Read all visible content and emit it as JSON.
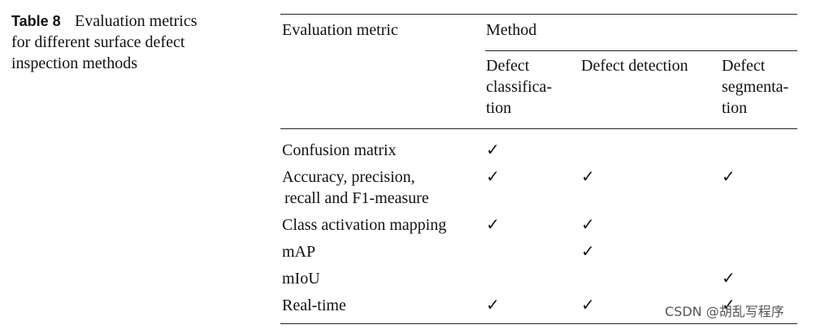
{
  "caption": {
    "label": "Table 8",
    "lines": [
      "Evaluation metrics",
      "for different surface defect",
      "inspection methods"
    ]
  },
  "table": {
    "header": {
      "metric": "Evaluation metric",
      "method": "Method",
      "methods": [
        [
          "Defect",
          "classifica-",
          "tion"
        ],
        [
          "Defect detection"
        ],
        [
          "Defect",
          "segmenta-",
          "tion"
        ]
      ]
    },
    "rows": [
      {
        "metric": [
          "Confusion matrix"
        ],
        "checks": [
          "✓",
          null,
          null
        ]
      },
      {
        "metric": [
          "Accuracy, precision,",
          "recall and F1-measure"
        ],
        "checks": [
          "✓",
          "✓",
          "✓"
        ]
      },
      {
        "metric": [
          "Class activation mapping"
        ],
        "checks": [
          "✓",
          "✓",
          null
        ]
      },
      {
        "metric": [
          "mAP"
        ],
        "checks": [
          null,
          "✓",
          null
        ]
      },
      {
        "metric": [
          "mIoU"
        ],
        "checks": [
          null,
          null,
          "✓"
        ]
      },
      {
        "metric": [
          "Real-time"
        ],
        "checks": [
          "✓",
          "✓",
          "✓"
        ]
      }
    ]
  },
  "watermark": "CSDN @胡乱写程序"
}
